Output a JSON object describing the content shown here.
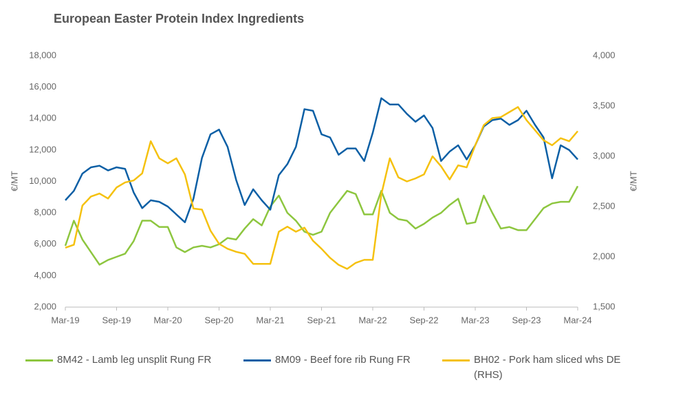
{
  "chart_data": {
    "type": "line",
    "title": "European Easter Protein Index Ingredients",
    "ylabel": "€/MT",
    "y2label": "€/MT",
    "categories": [
      "Mar-19",
      null,
      null,
      null,
      null,
      null,
      "Sep-19",
      null,
      null,
      null,
      null,
      null,
      "Mar-20",
      null,
      null,
      null,
      null,
      null,
      "Sep-20",
      null,
      null,
      null,
      null,
      null,
      "Mar-21",
      null,
      null,
      null,
      null,
      null,
      "Sep-21",
      null,
      null,
      null,
      null,
      null,
      "Mar-22",
      null,
      null,
      null,
      null,
      null,
      "Sep-22",
      null,
      null,
      null,
      null,
      null,
      "Mar-23",
      null,
      null,
      null,
      null,
      null,
      "Sep-23",
      null,
      null,
      null,
      null,
      null,
      "Mar-24"
    ],
    "ylim": [
      2000,
      18000
    ],
    "yticks": [
      {
        "value": 2000,
        "label": "2,000"
      },
      {
        "value": 4000,
        "label": "4,000"
      },
      {
        "value": 6000,
        "label": "6,000"
      },
      {
        "value": 8000,
        "label": "8,000"
      },
      {
        "value": 10000,
        "label": "10,000"
      },
      {
        "value": 12000,
        "label": "12,000"
      },
      {
        "value": 14000,
        "label": "14,000"
      },
      {
        "value": 16000,
        "label": "16,000"
      },
      {
        "value": 18000,
        "label": "18,000"
      }
    ],
    "y2lim": [
      1500,
      4000
    ],
    "y2ticks": [
      {
        "value": 1500,
        "label": "1,500"
      },
      {
        "value": 2000,
        "label": "2,000"
      },
      {
        "value": 2500,
        "label": "2,500"
      },
      {
        "value": 3000,
        "label": "3,000"
      },
      {
        "value": 3500,
        "label": "3,500"
      },
      {
        "value": 4000,
        "label": "4,000"
      }
    ],
    "grid": false,
    "legend": "bottom",
    "series": [
      {
        "name": "8M42 - Lamb leg unsplit Rung FR",
        "color": "#8dc63f",
        "values": [
          5900,
          7500,
          6300,
          5500,
          4700,
          5000,
          5200,
          5400,
          6200,
          7500,
          7500,
          7100,
          7100,
          5800,
          5500,
          5800,
          5900,
          5800,
          6000,
          6400,
          6300,
          7000,
          7600,
          7200,
          8400,
          9100,
          8000,
          7500,
          6800,
          6600,
          6800,
          8000,
          8700,
          9400,
          9200,
          7900,
          7900,
          9400,
          8000,
          7600,
          7500,
          7000,
          7300,
          7700,
          8000,
          8500,
          8900,
          7300,
          7400,
          9100,
          8000,
          7000,
          7100,
          6900,
          6900,
          7600,
          8300,
          8600,
          8700,
          8700,
          9700
        ]
      },
      {
        "name": "8M09 - Beef fore rib Rung FR",
        "color": "#0b5fa5",
        "values": [
          8800,
          9400,
          10500,
          10900,
          11000,
          10700,
          10900,
          10800,
          9300,
          8300,
          8800,
          8700,
          8400,
          7900,
          7400,
          8900,
          11500,
          13000,
          13300,
          12200,
          10100,
          8500,
          9500,
          8800,
          8200,
          10400,
          11100,
          12200,
          14600,
          14500,
          13000,
          12800,
          11700,
          12100,
          12100,
          11300,
          13100,
          15300,
          14900,
          14900,
          14300,
          13800,
          14200,
          13400,
          11300,
          11900,
          12300,
          11400,
          12300,
          13500,
          13900,
          14000,
          13600,
          13900,
          14500,
          13600,
          12800,
          10200,
          12300,
          12000,
          11400
        ]
      },
      {
        "name": "BH02 - Pork ham sliced whs DE (RHS)",
        "color": "#f5c10e",
        "axis": "y2",
        "values": [
          2090,
          2120,
          2510,
          2600,
          2630,
          2580,
          2690,
          2740,
          2760,
          2830,
          3150,
          2980,
          2930,
          2980,
          2820,
          2480,
          2470,
          2260,
          2130,
          2080,
          2050,
          2030,
          1930,
          1930,
          1930,
          2250,
          2300,
          2250,
          2290,
          2160,
          2080,
          1990,
          1920,
          1880,
          1940,
          1970,
          1970,
          2620,
          2980,
          2790,
          2750,
          2780,
          2820,
          3000,
          2900,
          2770,
          2910,
          2890,
          3110,
          3310,
          3380,
          3390,
          3440,
          3490,
          3360,
          3260,
          3160,
          3110,
          3180,
          3150,
          3250
        ]
      }
    ]
  }
}
